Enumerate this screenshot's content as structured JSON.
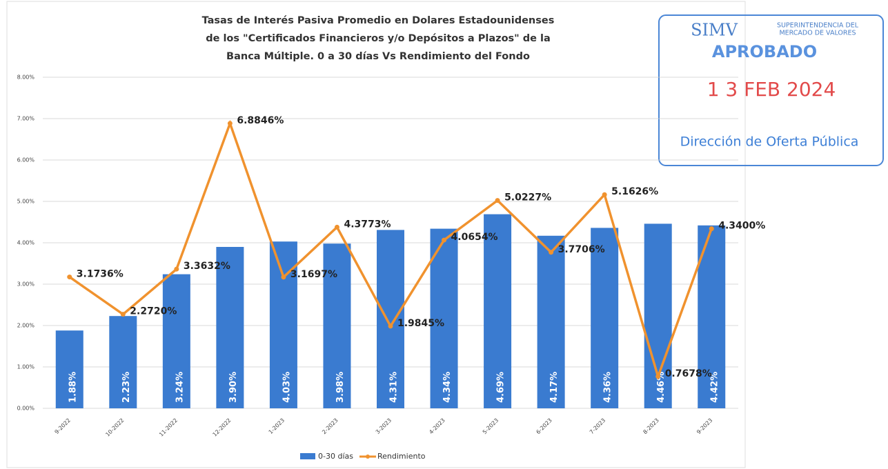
{
  "chart_data": {
    "type": "bar_line",
    "title": [
      "Tasas de Interés Pasiva Promedio  en Dolares Estadounidenses",
      "de los \"Certificados Financieros y/o Depósitos a Plazos\" de la",
      "Banca Múltiple. 0 a 30 días Vs Rendimiento del Fondo"
    ],
    "categories": [
      "9-2022",
      "10-2022",
      "11-2022",
      "12-2022",
      "1-2023",
      "2-2023",
      "3-2023",
      "4-2023",
      "5-2023",
      "6-2023",
      "7-2023",
      "8-2023",
      "9-2023"
    ],
    "series": [
      {
        "name": "0-30 días",
        "type": "bar",
        "color": "#3a7bd0",
        "values": [
          1.88,
          2.23,
          3.24,
          3.9,
          4.03,
          3.98,
          4.31,
          4.34,
          4.69,
          4.17,
          4.36,
          4.46,
          4.42
        ],
        "value_labels": [
          "1.88%",
          "2.23%",
          "3.24%",
          "3.90%",
          "4.03%",
          "3.98%",
          "4.31%",
          "4.34%",
          "4.69%",
          "4.17%",
          "4.36%",
          "4.46%",
          "4.42%"
        ]
      },
      {
        "name": "Rendimiento",
        "type": "line",
        "color": "#f0922e",
        "values": [
          3.1736,
          2.272,
          3.3632,
          6.8846,
          3.1697,
          4.3773,
          1.9845,
          4.0654,
          5.0227,
          3.7706,
          5.1626,
          0.7678,
          4.34
        ],
        "value_labels": [
          "3.1736%",
          "2.2720%",
          "3.3632%",
          "6.8846%",
          "3.1697%",
          "4.3773%",
          "1.9845%",
          "4.0654%",
          "5.0227%",
          "3.7706%",
          "5.1626%",
          "0.7678%",
          "4.3400%"
        ]
      }
    ],
    "ylim": [
      0,
      8
    ],
    "yticks": [
      {
        "value": 0,
        "label": "0.00%"
      },
      {
        "value": 1,
        "label": "1.00%"
      },
      {
        "value": 2,
        "label": "2.00%"
      },
      {
        "value": 3,
        "label": "3.00%"
      },
      {
        "value": 4,
        "label": "4.00%"
      },
      {
        "value": 5,
        "label": "5.00%"
      },
      {
        "value": 6,
        "label": "6.00%"
      },
      {
        "value": 7,
        "label": "7.00%"
      },
      {
        "value": 8,
        "label": "8.00%"
      }
    ],
    "grid": true,
    "legend": "bottom"
  },
  "stamp": {
    "logo": "SIMV",
    "org": [
      "SUPERINTENDENCIA DEL",
      "MERCADO DE VALORES"
    ],
    "status": "APROBADO",
    "date": "1 3 FEB 2024",
    "office": "Dirección de Oferta Pública"
  }
}
